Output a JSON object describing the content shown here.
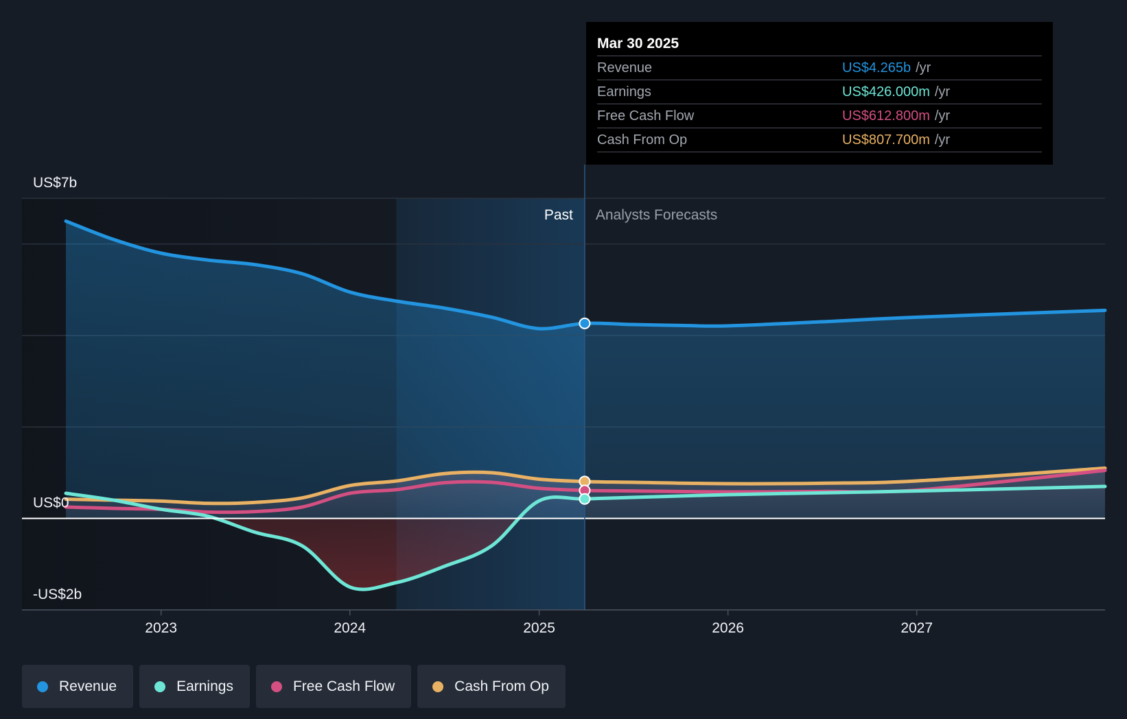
{
  "colors": {
    "background": "#161c26",
    "revenue": "#2394df",
    "earnings": "#6ee6d6",
    "free_cash_flow": "#d44f82",
    "cash_from_op": "#e9b164",
    "grid": "#2b323d",
    "zero_line": "#ffffff"
  },
  "tooltip": {
    "date": "Mar 30 2025",
    "rows": [
      {
        "label": "Revenue",
        "value": "US$4.265b",
        "unit": "/yr",
        "color": "#2394df"
      },
      {
        "label": "Earnings",
        "value": "US$426.000m",
        "unit": "/yr",
        "color": "#6ee6d6"
      },
      {
        "label": "Free Cash Flow",
        "value": "US$612.800m",
        "unit": "/yr",
        "color": "#d44f82"
      },
      {
        "label": "Cash From Op",
        "value": "US$807.700m",
        "unit": "/yr",
        "color": "#e9b164"
      }
    ]
  },
  "past_label": "Past",
  "forecast_label": "Analysts Forecasts",
  "legend": [
    {
      "label": "Revenue",
      "color": "#2394df"
    },
    {
      "label": "Earnings",
      "color": "#6ee6d6"
    },
    {
      "label": "Free Cash Flow",
      "color": "#d44f82"
    },
    {
      "label": "Cash From Op",
      "color": "#e9b164"
    }
  ],
  "chart_data": {
    "type": "line",
    "y_unit": "US$ billions",
    "ylim": [
      -2,
      7
    ],
    "y_tick_labels": [
      {
        "value": 7,
        "label": "US$7b"
      },
      {
        "value": 0,
        "label": "US$0"
      },
      {
        "value": -2,
        "label": "-US$2b"
      }
    ],
    "x_tick_labels": [
      "2023",
      "2024",
      "2025",
      "2026",
      "2027"
    ],
    "x_range": [
      "2022-07-01",
      "2027-12-31"
    ],
    "past_highlight_start": "2024-03-31",
    "divider_date": "2025-03-30",
    "series": [
      {
        "name": "Revenue",
        "color": "#2394df",
        "points": [
          [
            "2022-07-01",
            6.5
          ],
          [
            "2022-10-01",
            6.1
          ],
          [
            "2023-01-01",
            5.8
          ],
          [
            "2023-04-01",
            5.65
          ],
          [
            "2023-07-01",
            5.55
          ],
          [
            "2023-10-01",
            5.35
          ],
          [
            "2024-01-01",
            4.95
          ],
          [
            "2024-04-01",
            4.75
          ],
          [
            "2024-07-01",
            4.6
          ],
          [
            "2024-10-01",
            4.4
          ],
          [
            "2024-12-31",
            4.15
          ],
          [
            "2025-03-30",
            4.265
          ],
          [
            "2025-07-01",
            4.24
          ],
          [
            "2025-10-01",
            4.22
          ],
          [
            "2026-01-01",
            4.21
          ],
          [
            "2026-07-01",
            4.3
          ],
          [
            "2027-01-01",
            4.4
          ],
          [
            "2027-12-31",
            4.55
          ]
        ]
      },
      {
        "name": "Earnings",
        "color": "#6ee6d6",
        "points": [
          [
            "2022-07-01",
            0.55
          ],
          [
            "2022-10-01",
            0.4
          ],
          [
            "2023-01-01",
            0.2
          ],
          [
            "2023-04-01",
            0.05
          ],
          [
            "2023-07-01",
            -0.3
          ],
          [
            "2023-10-01",
            -0.6
          ],
          [
            "2024-01-01",
            -1.5
          ],
          [
            "2024-04-01",
            -1.4
          ],
          [
            "2024-07-01",
            -1.05
          ],
          [
            "2024-10-01",
            -0.6
          ],
          [
            "2024-12-31",
            0.38
          ],
          [
            "2025-03-30",
            0.426
          ],
          [
            "2025-07-01",
            0.46
          ],
          [
            "2026-01-01",
            0.52
          ],
          [
            "2026-07-01",
            0.56
          ],
          [
            "2027-01-01",
            0.6
          ],
          [
            "2027-12-31",
            0.7
          ]
        ]
      },
      {
        "name": "Free Cash Flow",
        "color": "#d44f82",
        "points": [
          [
            "2022-07-01",
            0.25
          ],
          [
            "2022-10-01",
            0.22
          ],
          [
            "2023-01-01",
            0.2
          ],
          [
            "2023-04-01",
            0.14
          ],
          [
            "2023-07-01",
            0.15
          ],
          [
            "2023-10-01",
            0.25
          ],
          [
            "2024-01-01",
            0.55
          ],
          [
            "2024-04-01",
            0.63
          ],
          [
            "2024-07-01",
            0.78
          ],
          [
            "2024-10-01",
            0.79
          ],
          [
            "2024-12-31",
            0.66
          ],
          [
            "2025-03-30",
            0.6128
          ],
          [
            "2025-07-01",
            0.6
          ],
          [
            "2026-01-01",
            0.58
          ],
          [
            "2026-07-01",
            0.59
          ],
          [
            "2027-01-01",
            0.62
          ],
          [
            "2027-12-31",
            1.05
          ]
        ]
      },
      {
        "name": "Cash From Op",
        "color": "#e9b164",
        "points": [
          [
            "2022-07-01",
            0.42
          ],
          [
            "2022-10-01",
            0.4
          ],
          [
            "2023-01-01",
            0.38
          ],
          [
            "2023-04-01",
            0.33
          ],
          [
            "2023-07-01",
            0.35
          ],
          [
            "2023-10-01",
            0.45
          ],
          [
            "2024-01-01",
            0.72
          ],
          [
            "2024-04-01",
            0.82
          ],
          [
            "2024-07-01",
            0.98
          ],
          [
            "2024-10-01",
            1.0
          ],
          [
            "2024-12-31",
            0.86
          ],
          [
            "2025-03-30",
            0.8077
          ],
          [
            "2025-07-01",
            0.79
          ],
          [
            "2026-01-01",
            0.76
          ],
          [
            "2026-07-01",
            0.77
          ],
          [
            "2027-01-01",
            0.82
          ],
          [
            "2027-12-31",
            1.1
          ]
        ]
      }
    ],
    "grid": true
  }
}
